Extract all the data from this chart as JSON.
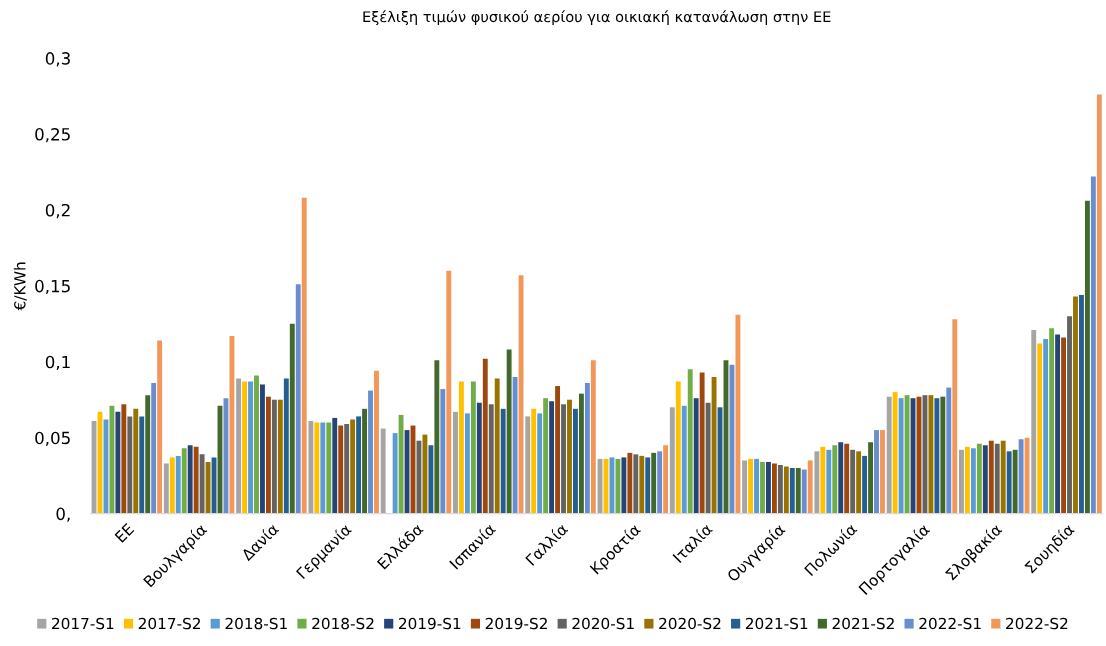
{
  "chart_data": {
    "type": "bar",
    "title": "Εξέλιξη τιμών φυσικού αερίου για οικιακή κατανάλωση στην ΕΕ",
    "ylabel": "€/KWh",
    "categories": [
      "ΕΕ",
      "Βουλγαρία",
      "Δανία",
      "Γερμανία",
      "Ελλάδα",
      "Ισπανία",
      "Γαλλία",
      "Κροατία",
      "Ιταλία",
      "Ουγγαρία",
      "Πολωνία",
      "Πορτογαλία",
      "Σλοβακία",
      "Σουηδία"
    ],
    "series": [
      {
        "name": "2017-S1",
        "color": "#a5a5a5",
        "values": [
          0.061,
          0.033,
          0.089,
          0.061,
          0.056,
          0.067,
          0.064,
          0.036,
          0.07,
          0.035,
          0.041,
          0.077,
          0.042,
          0.121
        ]
      },
      {
        "name": "2017-S2",
        "color": "#ffc000",
        "values": [
          0.067,
          0.037,
          0.087,
          0.06,
          null,
          0.087,
          0.069,
          0.036,
          0.087,
          0.036,
          0.044,
          0.08,
          0.044,
          0.112
        ]
      },
      {
        "name": "2018-S1",
        "color": "#5b9bd5",
        "values": [
          0.062,
          0.038,
          0.087,
          0.06,
          0.053,
          0.066,
          0.066,
          0.037,
          0.071,
          0.036,
          0.042,
          0.076,
          0.043,
          0.115
        ]
      },
      {
        "name": "2018-S2",
        "color": "#70ad47",
        "values": [
          0.071,
          0.043,
          0.091,
          0.06,
          0.065,
          0.087,
          0.076,
          0.036,
          0.095,
          0.034,
          0.045,
          0.078,
          0.046,
          0.122
        ]
      },
      {
        "name": "2019-S1",
        "color": "#264478",
        "values": [
          0.067,
          0.045,
          0.085,
          0.063,
          0.055,
          0.073,
          0.074,
          0.037,
          0.076,
          0.034,
          0.047,
          0.076,
          0.045,
          0.118
        ]
      },
      {
        "name": "2019-S2",
        "color": "#9e480e",
        "values": [
          0.072,
          0.044,
          0.077,
          0.058,
          0.058,
          0.102,
          0.084,
          0.04,
          0.093,
          0.033,
          0.046,
          0.077,
          0.048,
          0.116
        ]
      },
      {
        "name": "2020-S1",
        "color": "#636363",
        "values": [
          0.064,
          0.039,
          0.075,
          0.059,
          0.048,
          0.072,
          0.072,
          0.039,
          0.073,
          0.032,
          0.042,
          0.078,
          0.046,
          0.13
        ]
      },
      {
        "name": "2020-S2",
        "color": "#997300",
        "values": [
          0.069,
          0.034,
          0.075,
          0.062,
          0.052,
          0.089,
          0.075,
          0.038,
          0.09,
          0.031,
          0.041,
          0.078,
          0.048,
          0.143
        ]
      },
      {
        "name": "2021-S1",
        "color": "#255e91",
        "values": [
          0.064,
          0.037,
          0.089,
          0.064,
          0.045,
          0.069,
          0.069,
          0.037,
          0.07,
          0.03,
          0.038,
          0.076,
          0.041,
          0.144
        ]
      },
      {
        "name": "2021-S2",
        "color": "#43682b",
        "values": [
          0.078,
          0.071,
          0.125,
          0.069,
          0.101,
          0.108,
          0.079,
          0.04,
          0.101,
          0.03,
          0.047,
          0.077,
          0.042,
          0.206
        ]
      },
      {
        "name": "2022-S1",
        "color": "#698ed0",
        "values": [
          0.086,
          0.076,
          0.151,
          0.081,
          0.082,
          0.09,
          0.086,
          0.041,
          0.098,
          0.029,
          0.055,
          0.083,
          0.049,
          0.222
        ]
      },
      {
        "name": "2022-S2",
        "color": "#f1975a",
        "values": [
          0.114,
          0.117,
          0.208,
          0.094,
          0.16,
          0.157,
          0.101,
          0.045,
          0.131,
          0.035,
          0.055,
          0.128,
          0.05,
          0.276
        ]
      }
    ],
    "ylim": [
      0,
      0.3
    ],
    "yticks": [
      {
        "value": 0,
        "label": "0,"
      },
      {
        "value": 0.05,
        "label": "0,05"
      },
      {
        "value": 0.1,
        "label": "0,1"
      },
      {
        "value": 0.15,
        "label": "0,15"
      },
      {
        "value": 0.2,
        "label": "0,2"
      },
      {
        "value": 0.25,
        "label": "0,25"
      },
      {
        "value": 0.3,
        "label": "0,3"
      }
    ],
    "grid": false,
    "legend": "bottom"
  }
}
